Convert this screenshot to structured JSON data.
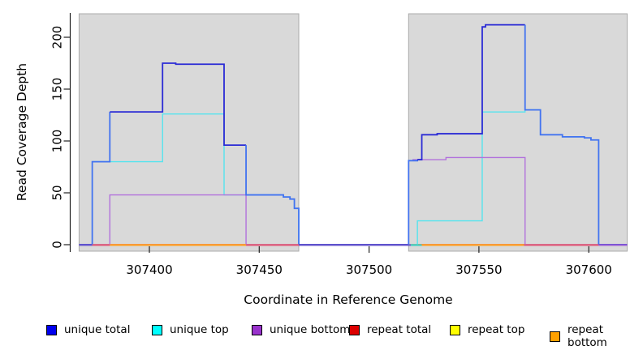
{
  "axes": {
    "xlabel": "Coordinate in Reference Genome",
    "ylabel": "Read Coverage Depth",
    "xticks": [
      307400,
      307450,
      307500,
      307550,
      307600
    ],
    "yticks": [
      0,
      50,
      100,
      150,
      200
    ],
    "xlim": [
      307363,
      307622
    ],
    "ylim": [
      0,
      215
    ]
  },
  "legend": [
    {
      "label": "unique total",
      "color": "#0000EE"
    },
    {
      "label": "unique top",
      "color": "#00FFFF"
    },
    {
      "label": "unique bottom",
      "color": "#9932CC"
    },
    {
      "label": "repeat total",
      "color": "#DD0000"
    },
    {
      "label": "repeat top",
      "color": "#FFFF00"
    },
    {
      "label": "repeat bottom",
      "color": "#FFA000"
    }
  ],
  "chart_data": {
    "type": "line",
    "title": "",
    "xlabel": "Coordinate in Reference Genome",
    "ylabel": "Read Coverage Depth",
    "grid": false,
    "legend_position": "bottom",
    "region_color": "#D9D9D9",
    "region_border": "#ABABAB",
    "regions": [
      {
        "from": 307368,
        "to": 307468
      },
      {
        "from": 307518,
        "to": 307617.5
      }
    ],
    "series": [
      {
        "name": "unique total",
        "color": "#2B2BD5",
        "width": 1.8,
        "bright_color": "#4273F0",
        "bright_ranges": [
          [
            307373,
            307382
          ],
          [
            307444,
            307468.2
          ],
          [
            307517,
            307522.5
          ],
          [
            307570.9,
            307605.5
          ]
        ],
        "points": [
          [
            307368,
            0
          ],
          [
            307374,
            80
          ],
          [
            307382,
            128
          ],
          [
            307406,
            175
          ],
          [
            307412,
            174
          ],
          [
            307434,
            96
          ],
          [
            307444,
            48
          ],
          [
            307461,
            46
          ],
          [
            307464,
            44
          ],
          [
            307466,
            35
          ],
          [
            307468,
            0
          ],
          [
            307518,
            81
          ],
          [
            307522,
            82
          ],
          [
            307524,
            106
          ],
          [
            307531,
            107
          ],
          [
            307551.5,
            210
          ],
          [
            307553,
            212
          ],
          [
            307571,
            130
          ],
          [
            307578,
            106
          ],
          [
            307588,
            104
          ],
          [
            307598,
            103
          ],
          [
            307601,
            101
          ],
          [
            307604.5,
            0
          ],
          [
            307617.5,
            0
          ]
        ]
      },
      {
        "name": "unique top",
        "color": "#55E4EE",
        "width": 1.4,
        "points": [
          [
            307368,
            0
          ],
          [
            307374,
            80
          ],
          [
            307406,
            126
          ],
          [
            307434,
            48
          ],
          [
            307461,
            46
          ],
          [
            307464,
            44
          ],
          [
            307466,
            35
          ],
          [
            307468,
            0
          ],
          [
            307522,
            23
          ],
          [
            307551.5,
            128
          ],
          [
            307571,
            130
          ],
          [
            307578,
            106
          ],
          [
            307588,
            104
          ],
          [
            307598,
            103
          ],
          [
            307601,
            101
          ],
          [
            307604.5,
            0
          ],
          [
            307617.5,
            0
          ]
        ]
      },
      {
        "name": "unique bottom",
        "color": "#B272DC",
        "width": 1.4,
        "points": [
          [
            307368,
            0
          ],
          [
            307382,
            48
          ],
          [
            307444,
            0
          ],
          [
            307518,
            81
          ],
          [
            307520,
            82
          ],
          [
            307535,
            84
          ],
          [
            307571,
            0
          ],
          [
            307617.5,
            0
          ]
        ]
      },
      {
        "name": "repeat total",
        "color": "#E05878",
        "width": 1.4,
        "points": [
          [
            307368,
            0
          ],
          [
            307617.5,
            0
          ]
        ]
      },
      {
        "name": "repeat top",
        "color": "#FFFF00",
        "width": 1.4,
        "points": [
          [
            307368,
            0
          ],
          [
            307617.5,
            0
          ]
        ]
      },
      {
        "name": "repeat bottom",
        "color": "#FFA020",
        "width": 1.4,
        "points": [
          [
            307368,
            0
          ],
          [
            307617.5,
            0
          ]
        ]
      }
    ],
    "zero_segments": [
      {
        "from": 307368,
        "to": 307374,
        "color": "#6A5ACD"
      },
      {
        "from": 307374,
        "to": 307382,
        "color": "#E05878"
      },
      {
        "from": 307382,
        "to": 307444,
        "color": "#FFA020"
      },
      {
        "from": 307444,
        "to": 307468,
        "color": "#E05878"
      },
      {
        "from": 307468,
        "to": 307519,
        "color": "#6A5ACD"
      },
      {
        "from": 307519,
        "to": 307524,
        "color": "#3ECFC0"
      },
      {
        "from": 307524,
        "to": 307570.5,
        "color": "#FFA020"
      },
      {
        "from": 307570.5,
        "to": 307604.5,
        "color": "#E05878"
      },
      {
        "from": 307604.5,
        "to": 307617.5,
        "color": "#9A5FD6"
      }
    ]
  }
}
